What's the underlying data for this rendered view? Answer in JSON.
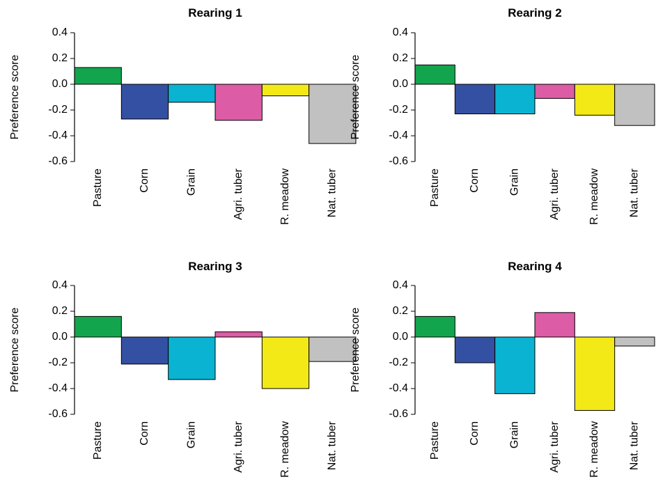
{
  "chart_data": [
    {
      "type": "bar",
      "title": "Rearing 1",
      "ylabel": "Preference score",
      "categories": [
        "Pasture",
        "Corn",
        "Grain",
        "Agri. tuber",
        "R. meadow",
        "Nat. tuber"
      ],
      "values": [
        0.13,
        -0.27,
        -0.14,
        -0.28,
        -0.09,
        -0.46
      ],
      "ylim": [
        -0.6,
        0.4
      ],
      "yticks": [
        "0.4",
        "0.2",
        "0.0",
        "-0.2",
        "-0.4",
        "-0.6"
      ],
      "grid": false
    },
    {
      "type": "bar",
      "title": "Rearing 2",
      "ylabel": "Preference score",
      "categories": [
        "Pasture",
        "Corn",
        "Grain",
        "Agri. tuber",
        "R. meadow",
        "Nat. tuber"
      ],
      "values": [
        0.15,
        -0.23,
        -0.23,
        -0.11,
        -0.24,
        -0.32
      ],
      "ylim": [
        -0.6,
        0.4
      ],
      "yticks": [
        "0.4",
        "0.2",
        "0.0",
        "-0.2",
        "-0.4",
        "-0.6"
      ],
      "grid": false
    },
    {
      "type": "bar",
      "title": "Rearing 3",
      "ylabel": "Preference score",
      "categories": [
        "Pasture",
        "Corn",
        "Grain",
        "Agri. tuber",
        "R. meadow",
        "Nat. tuber"
      ],
      "values": [
        0.16,
        -0.21,
        -0.33,
        0.04,
        -0.4,
        -0.19
      ],
      "ylim": [
        -0.6,
        0.4
      ],
      "yticks": [
        "0.4",
        "0.2",
        "0.0",
        "-0.2",
        "-0.4",
        "-0.6"
      ],
      "grid": false
    },
    {
      "type": "bar",
      "title": "Rearing 4",
      "ylabel": "Preference score",
      "categories": [
        "Pasture",
        "Corn",
        "Grain",
        "Agri. tuber",
        "R. meadow",
        "Nat. tuber"
      ],
      "values": [
        0.16,
        -0.2,
        -0.44,
        0.19,
        -0.57,
        -0.07
      ],
      "ylim": [
        -0.6,
        0.4
      ],
      "yticks": [
        "0.4",
        "0.2",
        "0.0",
        "-0.2",
        "-0.4",
        "-0.6"
      ],
      "grid": false
    }
  ],
  "colors": {
    "Pasture": "#13a54d",
    "Corn": "#3450a2",
    "Grain": "#0ab3d1",
    "Agri. tuber": "#dc5ca6",
    "R. meadow": "#f2e917",
    "Nat. tuber": "#c1c1c1"
  }
}
